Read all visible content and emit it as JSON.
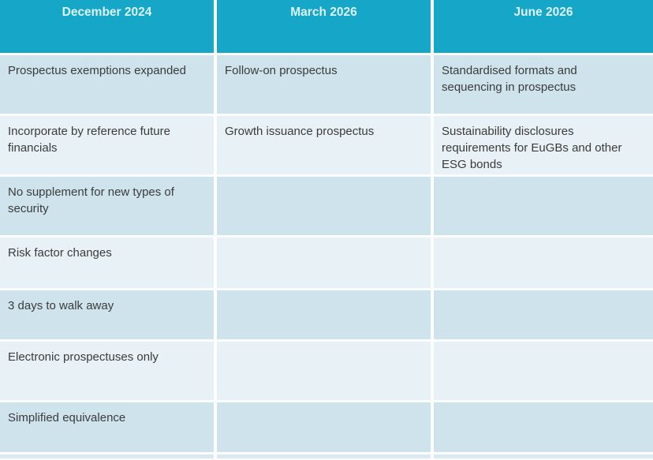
{
  "table": {
    "columns": [
      {
        "label": "December 2024"
      },
      {
        "label": "March 2026"
      },
      {
        "label": "June 2026"
      }
    ],
    "rows": [
      [
        "Prospectus exemptions expanded",
        "Follow-on prospectus",
        "Standardised formats and sequencing in prospectus"
      ],
      [
        "Incorporate by reference future financials",
        "Growth issuance prospectus",
        "Sustainability disclosures requirements for EuGBs and other ESG bonds"
      ],
      [
        "No supplement for new types of security",
        "",
        ""
      ],
      [
        "Risk factor changes",
        "",
        ""
      ],
      [
        "3 days to walk away",
        "",
        ""
      ],
      [
        "Electronic prospectuses only",
        "",
        ""
      ],
      [
        "Simplified equivalence",
        "",
        ""
      ]
    ],
    "colors": {
      "header_bg": "#16a6c7",
      "header_text": "#dcf3f9",
      "row_dark": "#cfe3ec",
      "row_light": "#e8f1f5",
      "body_text": "#3b3b3b",
      "grid_gap": "#fcfdfe",
      "bottom_strip": "#dce8ef"
    }
  }
}
